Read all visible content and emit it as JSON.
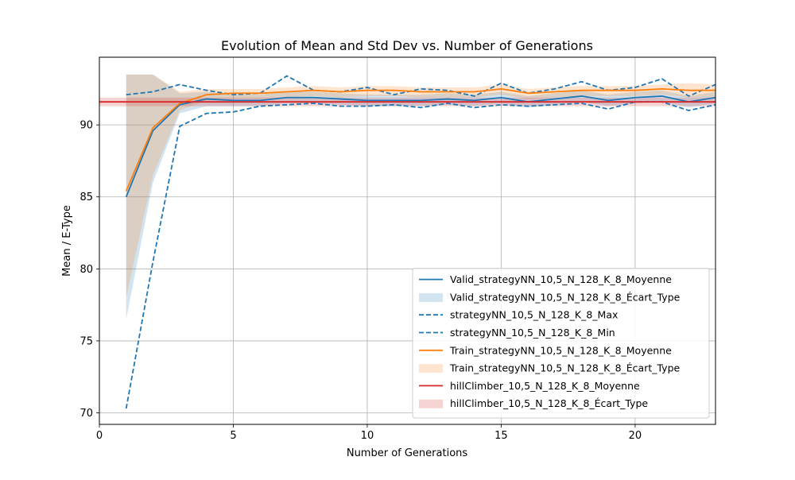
{
  "chart_data": {
    "type": "line",
    "title": "Evolution of Mean and Std Dev vs. Number of Generations",
    "xlabel": "Number of Generations",
    "ylabel": "Mean / E-Type",
    "xlim": [
      0,
      23
    ],
    "ylim": [
      69.2,
      94.7
    ],
    "x_ticks": [
      0,
      5,
      10,
      15,
      20
    ],
    "y_ticks": [
      70,
      75,
      80,
      85,
      90
    ],
    "grid": true,
    "legend_position": "lower-right",
    "x": [
      1,
      2,
      3,
      4,
      5,
      6,
      7,
      8,
      9,
      10,
      11,
      12,
      13,
      14,
      15,
      16,
      17,
      18,
      19,
      20,
      21,
      22,
      23
    ],
    "series": [
      {
        "name": "Valid_strategyNN_10,5_N_128_K_8_Moyenne",
        "kind": "line",
        "style": "solid",
        "color": "#1f77b4",
        "values": [
          85.0,
          89.6,
          91.4,
          91.8,
          91.7,
          91.7,
          91.9,
          91.9,
          91.8,
          91.7,
          91.7,
          91.7,
          91.8,
          91.7,
          91.9,
          91.6,
          91.8,
          92.0,
          91.7,
          91.9,
          92.0,
          91.6,
          91.9
        ]
      },
      {
        "name": "Valid_strategyNN_10,5_N_128_K_8_Écart_Type",
        "kind": "band",
        "color": "#1f77b4",
        "lower": [
          76.5,
          86.0,
          90.8,
          91.3,
          91.3,
          91.3,
          91.5,
          91.5,
          91.4,
          91.3,
          91.3,
          91.3,
          91.4,
          91.3,
          91.5,
          91.2,
          91.4,
          91.6,
          91.3,
          91.5,
          91.6,
          91.2,
          91.5
        ],
        "upper": [
          93.5,
          93.5,
          92.2,
          92.3,
          92.1,
          92.1,
          92.3,
          92.3,
          92.2,
          92.1,
          92.1,
          92.1,
          92.2,
          92.1,
          92.3,
          92.0,
          92.2,
          92.4,
          92.1,
          92.3,
          92.4,
          92.0,
          92.3
        ]
      },
      {
        "name": "strategyNN_10,5_N_128_K_8_Max",
        "kind": "line",
        "style": "dashed",
        "color": "#1f77b4",
        "values": [
          92.1,
          92.3,
          92.8,
          92.4,
          92.1,
          92.2,
          93.4,
          92.4,
          92.3,
          92.6,
          92.1,
          92.5,
          92.4,
          92.0,
          92.9,
          92.2,
          92.5,
          93.0,
          92.4,
          92.6,
          93.2,
          92.0,
          92.8
        ]
      },
      {
        "name": "strategyNN_10,5_N_128_K_8_Min",
        "kind": "line",
        "style": "dashed",
        "color": "#1f77b4",
        "values": [
          70.3,
          80.5,
          89.9,
          90.8,
          90.9,
          91.3,
          91.4,
          91.5,
          91.3,
          91.3,
          91.4,
          91.2,
          91.5,
          91.2,
          91.4,
          91.3,
          91.4,
          91.5,
          91.1,
          91.6,
          91.6,
          91.0,
          91.4
        ]
      },
      {
        "name": "Train_strategyNN_10,5_N_128_K_8_Moyenne",
        "kind": "line",
        "style": "solid",
        "color": "#ff7f0e",
        "values": [
          85.4,
          89.8,
          91.5,
          92.1,
          92.2,
          92.2,
          92.3,
          92.4,
          92.3,
          92.4,
          92.4,
          92.3,
          92.3,
          92.3,
          92.5,
          92.2,
          92.3,
          92.4,
          92.4,
          92.4,
          92.5,
          92.4,
          92.4
        ]
      },
      {
        "name": "Train_strategyNN_10,5_N_128_K_8_Écart_Type",
        "kind": "band",
        "color": "#ff7f0e",
        "lower": [
          78.0,
          86.5,
          91.0,
          91.7,
          91.8,
          91.8,
          91.9,
          92.0,
          91.9,
          92.0,
          92.0,
          91.9,
          91.9,
          91.9,
          92.1,
          91.8,
          91.9,
          92.0,
          92.0,
          92.0,
          92.1,
          91.9,
          91.9
        ],
        "upper": [
          93.5,
          93.5,
          92.3,
          92.5,
          92.5,
          92.5,
          92.6,
          92.7,
          92.6,
          92.7,
          92.7,
          92.6,
          92.6,
          92.6,
          92.8,
          92.5,
          92.6,
          92.7,
          92.7,
          92.7,
          92.8,
          92.9,
          92.8
        ]
      },
      {
        "name": "hillClimber_10,5_N_128_K_8_Moyenne",
        "kind": "hline",
        "style": "solid",
        "color": "#d62728",
        "y": 91.6
      },
      {
        "name": "hillClimber_10,5_N_128_K_8_Écart_Type",
        "kind": "hband",
        "color": "#d62728",
        "lower": 91.3,
        "upper": 91.9
      }
    ]
  }
}
